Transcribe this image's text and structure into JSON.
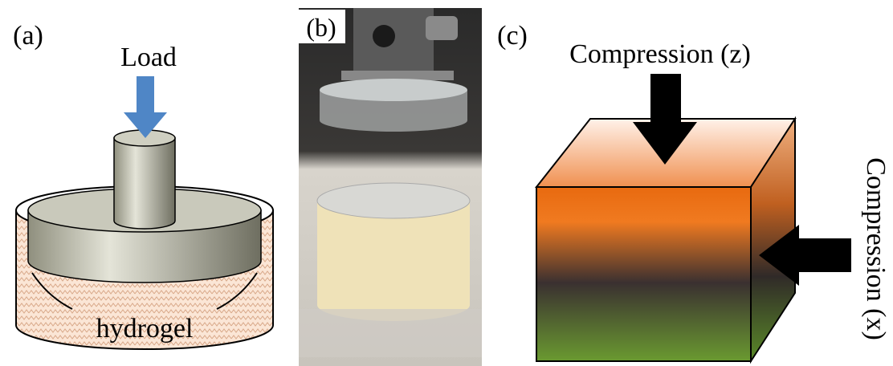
{
  "panels": [
    {
      "label": "(a)",
      "load": "Load",
      "material": "hydrogel"
    },
    {
      "label": "(b)"
    },
    {
      "label": "(c)",
      "top_arrow": "Compression (z)",
      "side_arrow": "Compression (x)"
    }
  ]
}
